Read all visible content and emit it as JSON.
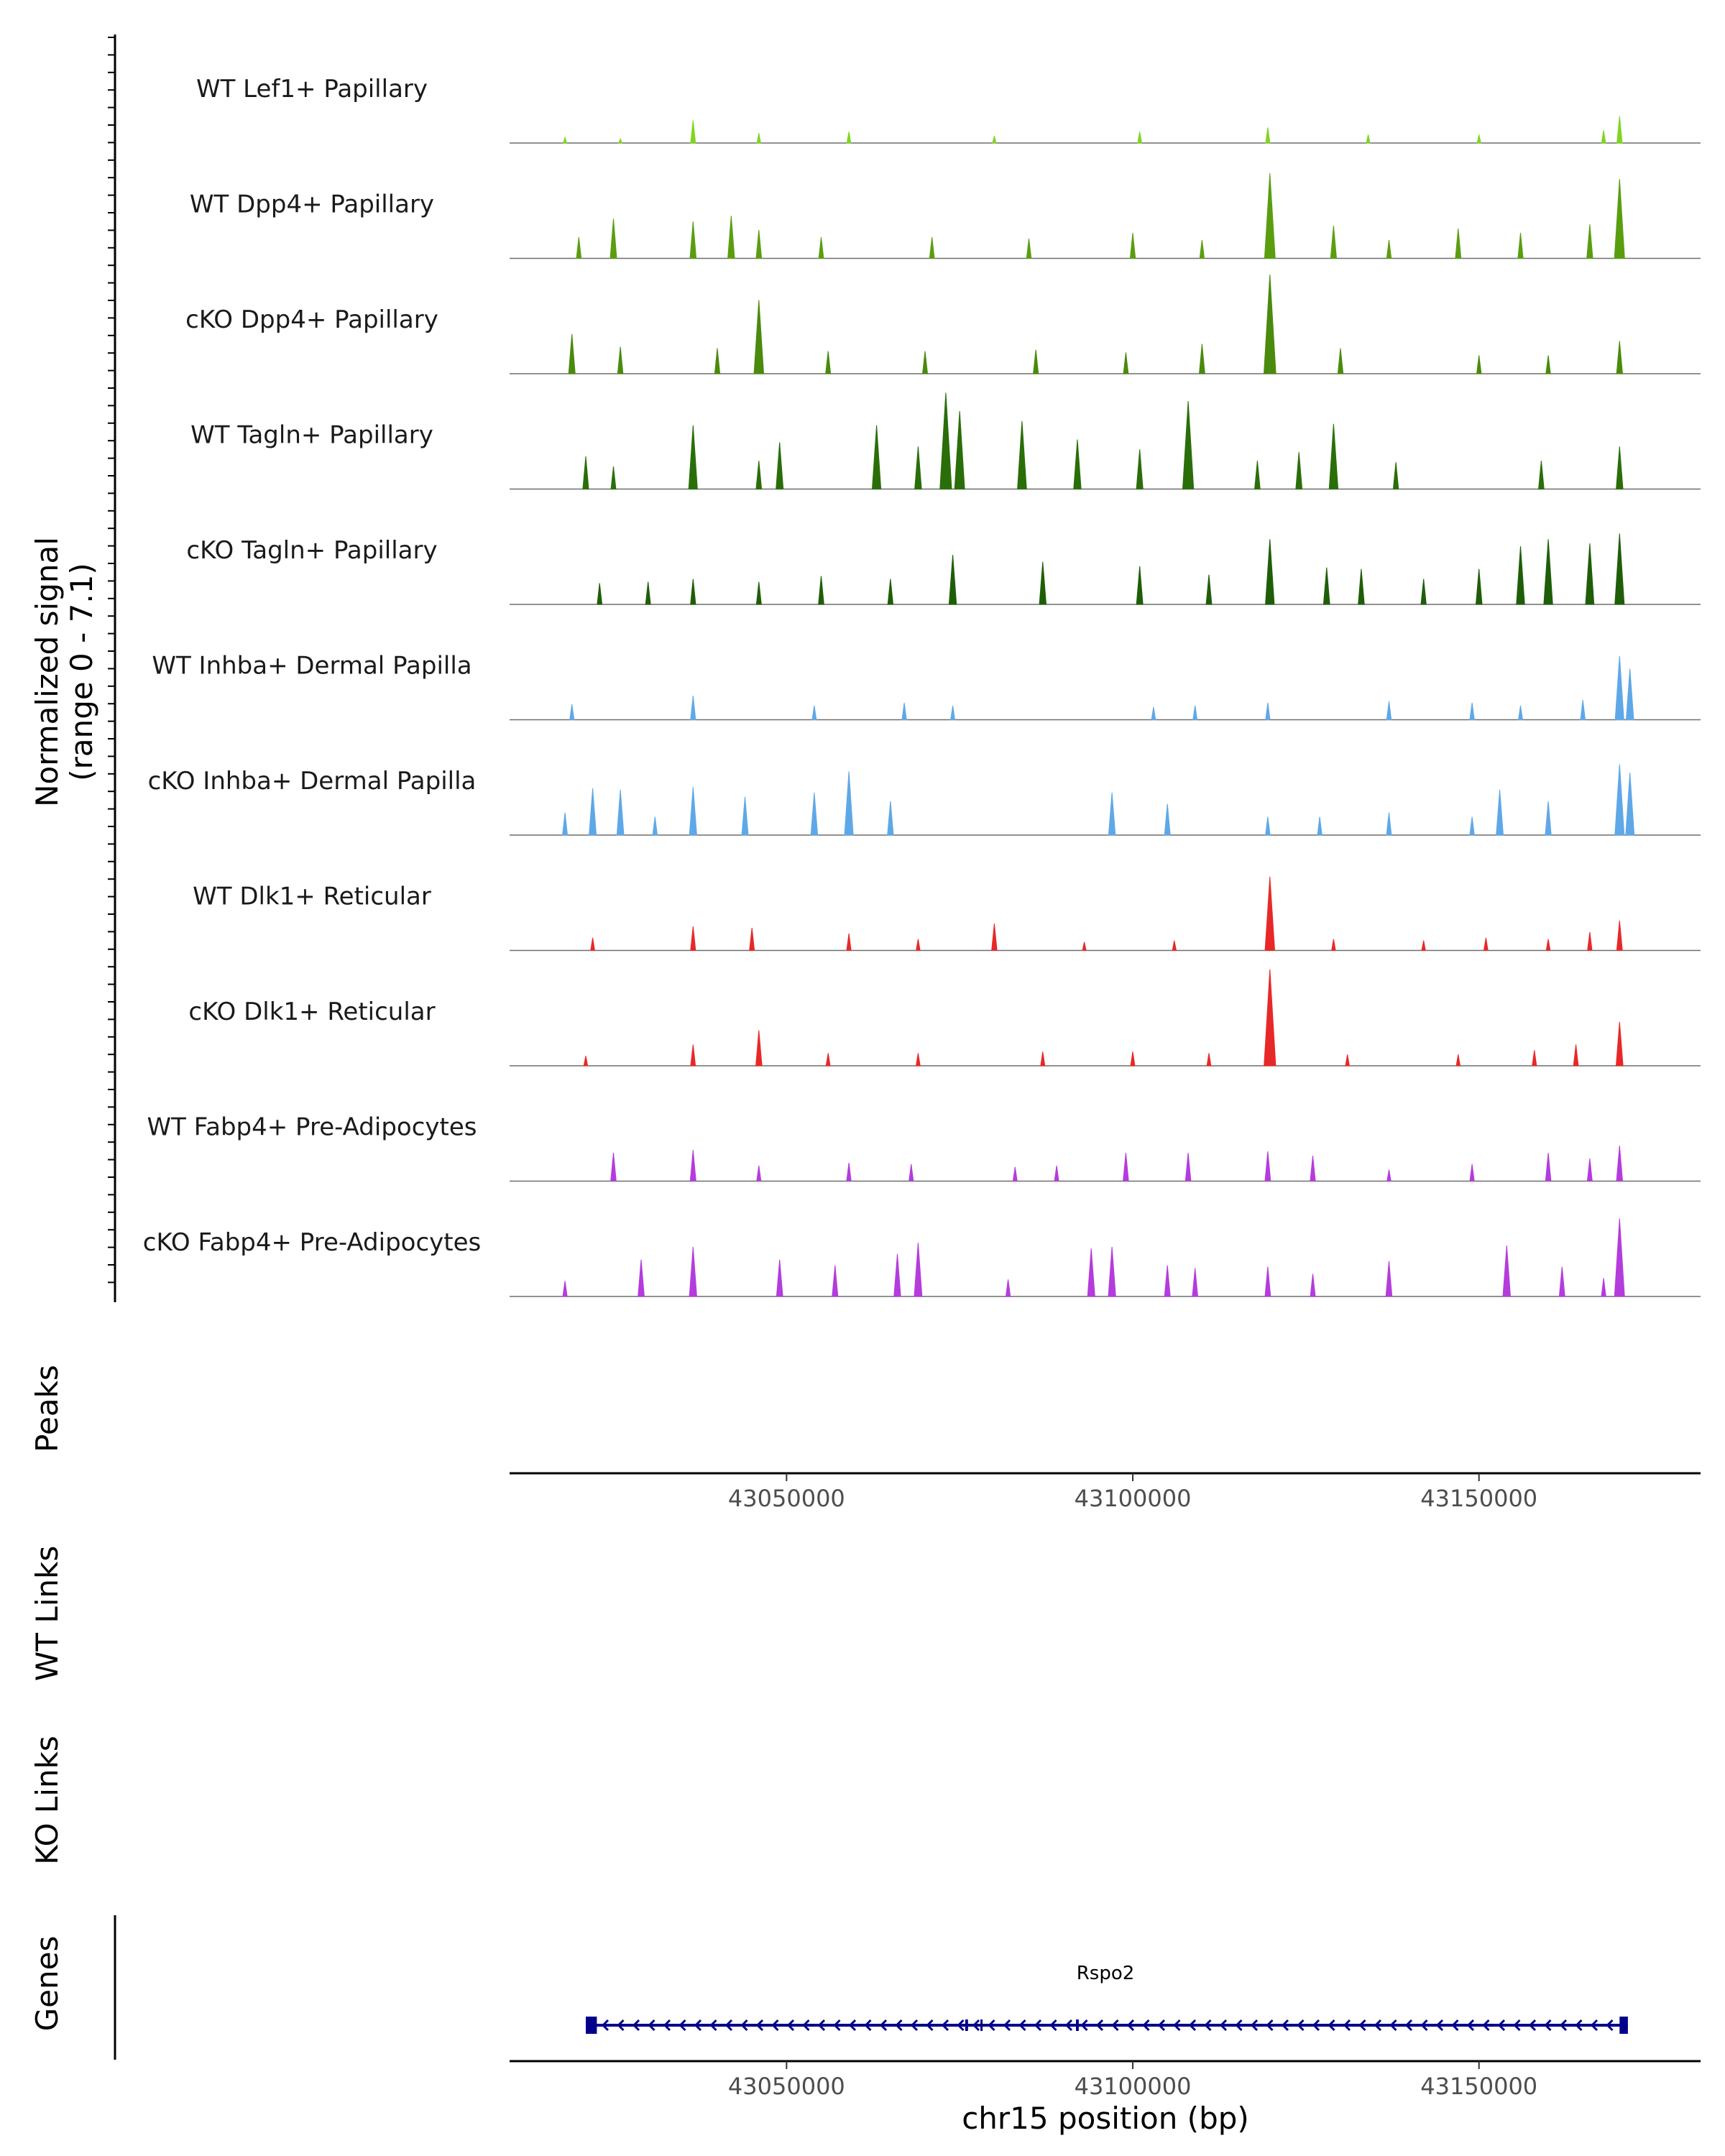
{
  "chart_data": {
    "type": "area",
    "title": "",
    "region": {
      "chromosome": "chr15",
      "start": 43010000,
      "end": 43182000
    },
    "y_axis_title": [
      "Normalized signal",
      "(range 0 - 7.1)"
    ],
    "ylim": [
      0,
      7.1
    ],
    "x_ticks": [
      43050000,
      43100000,
      43150000
    ],
    "x_tick_labels": [
      "43050000",
      "43100000",
      "43150000"
    ],
    "xlabel": "chr15 position (bp)",
    "tracks": [
      {
        "name": "WT Lef1+ Papillary",
        "color": "#7fd61f",
        "peaks": [
          [
            43018000,
            0.4
          ],
          [
            43026000,
            0.3
          ],
          [
            43036500,
            1.6
          ],
          [
            43046000,
            0.7
          ],
          [
            43059000,
            0.8
          ],
          [
            43080000,
            0.5
          ],
          [
            43101000,
            0.8
          ],
          [
            43119500,
            1.1
          ],
          [
            43134000,
            0.6
          ],
          [
            43150000,
            0.6
          ],
          [
            43168000,
            0.9
          ],
          [
            43170300,
            1.9
          ]
        ]
      },
      {
        "name": "WT Dpp4+ Papillary",
        "color": "#5a9e10",
        "peaks": [
          [
            43020000,
            1.5
          ],
          [
            43025000,
            2.8
          ],
          [
            43036500,
            2.6
          ],
          [
            43042000,
            3.0
          ],
          [
            43046000,
            2.0
          ],
          [
            43055000,
            1.5
          ],
          [
            43071000,
            1.5
          ],
          [
            43085000,
            1.4
          ],
          [
            43100000,
            1.8
          ],
          [
            43110000,
            1.3
          ],
          [
            43119800,
            6.0
          ],
          [
            43129000,
            2.3
          ],
          [
            43137000,
            1.3
          ],
          [
            43147000,
            2.1
          ],
          [
            43156000,
            1.8
          ],
          [
            43166000,
            2.4
          ],
          [
            43170300,
            5.6
          ]
        ]
      },
      {
        "name": "cKO Dpp4+ Papillary",
        "color": "#4a8a0c",
        "peaks": [
          [
            43019000,
            2.8
          ],
          [
            43026000,
            1.9
          ],
          [
            43040000,
            1.8
          ],
          [
            43046000,
            5.2
          ],
          [
            43056000,
            1.6
          ],
          [
            43070000,
            1.6
          ],
          [
            43086000,
            1.7
          ],
          [
            43099000,
            1.5
          ],
          [
            43110000,
            2.1
          ],
          [
            43119800,
            7.0
          ],
          [
            43130000,
            1.8
          ],
          [
            43150000,
            1.3
          ],
          [
            43160000,
            1.3
          ],
          [
            43170300,
            2.3
          ]
        ]
      },
      {
        "name": "WT Tagln+ Papillary",
        "color": "#2a6e0a",
        "peaks": [
          [
            43021000,
            2.3
          ],
          [
            43025000,
            1.6
          ],
          [
            43036500,
            4.5
          ],
          [
            43046000,
            2.0
          ],
          [
            43049000,
            3.3
          ],
          [
            43063000,
            4.5
          ],
          [
            43069000,
            3.0
          ],
          [
            43073000,
            6.8
          ],
          [
            43075000,
            5.5
          ],
          [
            43084000,
            4.8
          ],
          [
            43092000,
            3.5
          ],
          [
            43101000,
            2.8
          ],
          [
            43108000,
            6.2
          ],
          [
            43118000,
            2.0
          ],
          [
            43124000,
            2.6
          ],
          [
            43129000,
            4.6
          ],
          [
            43138000,
            1.9
          ],
          [
            43159000,
            2.0
          ],
          [
            43170300,
            3.0
          ]
        ]
      },
      {
        "name": "cKO Tagln+ Papillary",
        "color": "#1f5e08",
        "peaks": [
          [
            43023000,
            1.5
          ],
          [
            43030000,
            1.6
          ],
          [
            43036500,
            1.8
          ],
          [
            43046000,
            1.6
          ],
          [
            43055000,
            2.0
          ],
          [
            43065000,
            1.8
          ],
          [
            43074000,
            3.5
          ],
          [
            43087000,
            3.0
          ],
          [
            43101000,
            2.7
          ],
          [
            43111000,
            2.1
          ],
          [
            43119800,
            4.6
          ],
          [
            43128000,
            2.6
          ],
          [
            43133000,
            2.5
          ],
          [
            43142000,
            1.8
          ],
          [
            43150000,
            2.5
          ],
          [
            43156000,
            4.1
          ],
          [
            43160000,
            4.6
          ],
          [
            43166000,
            4.3
          ],
          [
            43170300,
            5.0
          ]
        ]
      },
      {
        "name": "WT Inhba+ Dermal Papilla",
        "color": "#5fa8e8",
        "peaks": [
          [
            43019000,
            1.1
          ],
          [
            43036500,
            1.7
          ],
          [
            43054000,
            1.0
          ],
          [
            43067000,
            1.2
          ],
          [
            43074000,
            1.0
          ],
          [
            43103000,
            0.9
          ],
          [
            43109000,
            1.0
          ],
          [
            43119500,
            1.2
          ],
          [
            43137000,
            1.3
          ],
          [
            43149000,
            1.2
          ],
          [
            43156000,
            1.0
          ],
          [
            43165000,
            1.4
          ],
          [
            43170300,
            4.5
          ],
          [
            43171800,
            3.6
          ]
        ]
      },
      {
        "name": "cKO Inhba+ Dermal Papilla",
        "color": "#5fa8e8",
        "peaks": [
          [
            43018000,
            1.6
          ],
          [
            43022000,
            3.3
          ],
          [
            43026000,
            3.2
          ],
          [
            43031000,
            1.3
          ],
          [
            43036500,
            3.4
          ],
          [
            43044000,
            2.7
          ],
          [
            43054000,
            3.0
          ],
          [
            43059000,
            4.5
          ],
          [
            43065000,
            2.4
          ],
          [
            43097000,
            3.0
          ],
          [
            43105000,
            2.2
          ],
          [
            43119500,
            1.3
          ],
          [
            43127000,
            1.3
          ],
          [
            43137000,
            1.6
          ],
          [
            43149000,
            1.3
          ],
          [
            43153000,
            3.2
          ],
          [
            43160000,
            2.4
          ],
          [
            43170300,
            5.0
          ],
          [
            43171800,
            4.4
          ]
        ]
      },
      {
        "name": "WT Dlk1+ Reticular",
        "color": "#e82828",
        "peaks": [
          [
            43022000,
            0.9
          ],
          [
            43036500,
            1.7
          ],
          [
            43045000,
            1.6
          ],
          [
            43059000,
            1.2
          ],
          [
            43069000,
            0.8
          ],
          [
            43080000,
            1.9
          ],
          [
            43093000,
            0.6
          ],
          [
            43106000,
            0.7
          ],
          [
            43119800,
            5.2
          ],
          [
            43129000,
            0.8
          ],
          [
            43142000,
            0.7
          ],
          [
            43151000,
            0.9
          ],
          [
            43160000,
            0.8
          ],
          [
            43166000,
            1.3
          ],
          [
            43170300,
            2.1
          ]
        ]
      },
      {
        "name": "cKO Dlk1+ Reticular",
        "color": "#e82828",
        "peaks": [
          [
            43021000,
            0.7
          ],
          [
            43036500,
            1.5
          ],
          [
            43046000,
            2.5
          ],
          [
            43056000,
            0.9
          ],
          [
            43069000,
            0.9
          ],
          [
            43087000,
            1.0
          ],
          [
            43100000,
            1.0
          ],
          [
            43111000,
            0.9
          ],
          [
            43119800,
            6.8
          ],
          [
            43131000,
            0.8
          ],
          [
            43147000,
            0.8
          ],
          [
            43158000,
            1.1
          ],
          [
            43164000,
            1.5
          ],
          [
            43170300,
            3.1
          ]
        ]
      },
      {
        "name": "WT Fabp4+ Pre-Adipocytes",
        "color": "#b43cdc",
        "peaks": [
          [
            43025000,
            2.0
          ],
          [
            43036500,
            2.2
          ],
          [
            43046000,
            1.1
          ],
          [
            43059000,
            1.3
          ],
          [
            43068000,
            1.2
          ],
          [
            43083000,
            1.0
          ],
          [
            43089000,
            1.1
          ],
          [
            43099000,
            2.0
          ],
          [
            43108000,
            2.0
          ],
          [
            43119500,
            2.1
          ],
          [
            43126000,
            1.8
          ],
          [
            43137000,
            0.8
          ],
          [
            43149000,
            1.2
          ],
          [
            43160000,
            2.0
          ],
          [
            43166000,
            1.6
          ],
          [
            43170300,
            2.5
          ]
        ]
      },
      {
        "name": "cKO Fabp4+ Pre-Adipocytes",
        "color": "#b43cdc",
        "peaks": [
          [
            43018000,
            1.1
          ],
          [
            43029000,
            2.6
          ],
          [
            43036500,
            3.5
          ],
          [
            43049000,
            2.6
          ],
          [
            43057000,
            2.2
          ],
          [
            43066000,
            3.0
          ],
          [
            43069000,
            3.8
          ],
          [
            43082000,
            1.2
          ],
          [
            43094000,
            3.4
          ],
          [
            43097000,
            3.5
          ],
          [
            43105000,
            2.2
          ],
          [
            43109000,
            2.0
          ],
          [
            43119500,
            2.1
          ],
          [
            43126000,
            1.6
          ],
          [
            43137000,
            2.5
          ],
          [
            43154000,
            3.6
          ],
          [
            43162000,
            2.1
          ],
          [
            43168000,
            1.3
          ],
          [
            43170300,
            5.5
          ]
        ]
      }
    ],
    "panels": [
      {
        "label": "Peaks"
      },
      {
        "label": "WT Links"
      },
      {
        "label": "KO Links"
      },
      {
        "label": "Genes"
      }
    ],
    "gene": {
      "name": "Rspo2",
      "strand": "-",
      "start": 43021000,
      "end": 43171500,
      "color": "#00008b",
      "exons": [
        [
          43021000,
          43022600
        ],
        [
          43075800,
          43076200
        ],
        [
          43078000,
          43078300
        ],
        [
          43091800,
          43092200
        ],
        [
          43170300,
          43171500
        ]
      ]
    }
  }
}
